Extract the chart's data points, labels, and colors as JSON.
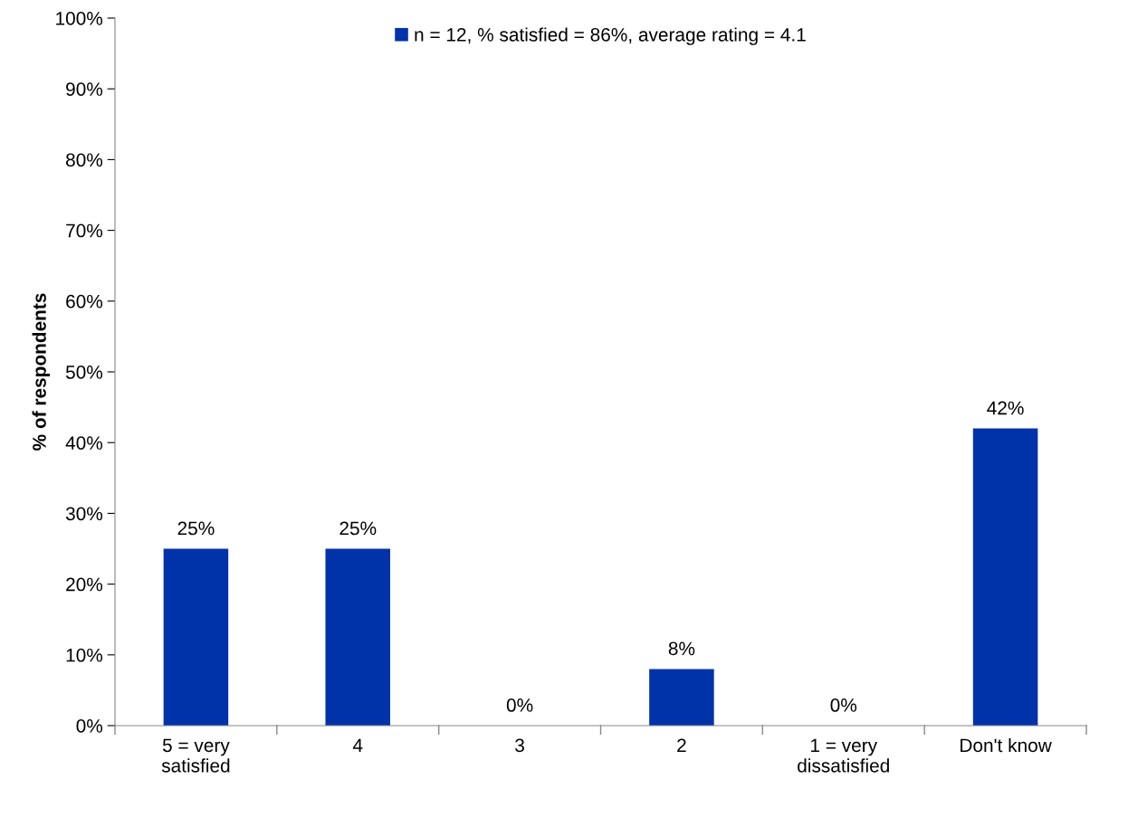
{
  "chart_data": {
    "type": "bar",
    "ylabel": "% of respondents",
    "categories": [
      "5 = very\nsatisfied",
      "4",
      "3",
      "2",
      "1 = very\ndissatisfied",
      "Don't know"
    ],
    "series": [
      {
        "name": "n = 12, % satisfied = 86%, average rating = 4.1",
        "color": "#0033aa",
        "values": [
          25,
          25,
          0,
          8,
          0,
          42
        ],
        "value_labels": [
          "25%",
          "25%",
          "0%",
          "8%",
          "0%",
          "42%"
        ]
      }
    ],
    "ylim": [
      0,
      100
    ],
    "yticks": [
      {
        "value": 0,
        "label": "0%"
      },
      {
        "value": 10,
        "label": "10%"
      },
      {
        "value": 20,
        "label": "20%"
      },
      {
        "value": 30,
        "label": "30%"
      },
      {
        "value": 40,
        "label": "40%"
      },
      {
        "value": 50,
        "label": "50%"
      },
      {
        "value": 60,
        "label": "60%"
      },
      {
        "value": 70,
        "label": "70%"
      },
      {
        "value": 80,
        "label": "80%"
      },
      {
        "value": 90,
        "label": "90%"
      },
      {
        "value": 100,
        "label": "100%"
      }
    ],
    "grid": false,
    "legend": "top"
  }
}
